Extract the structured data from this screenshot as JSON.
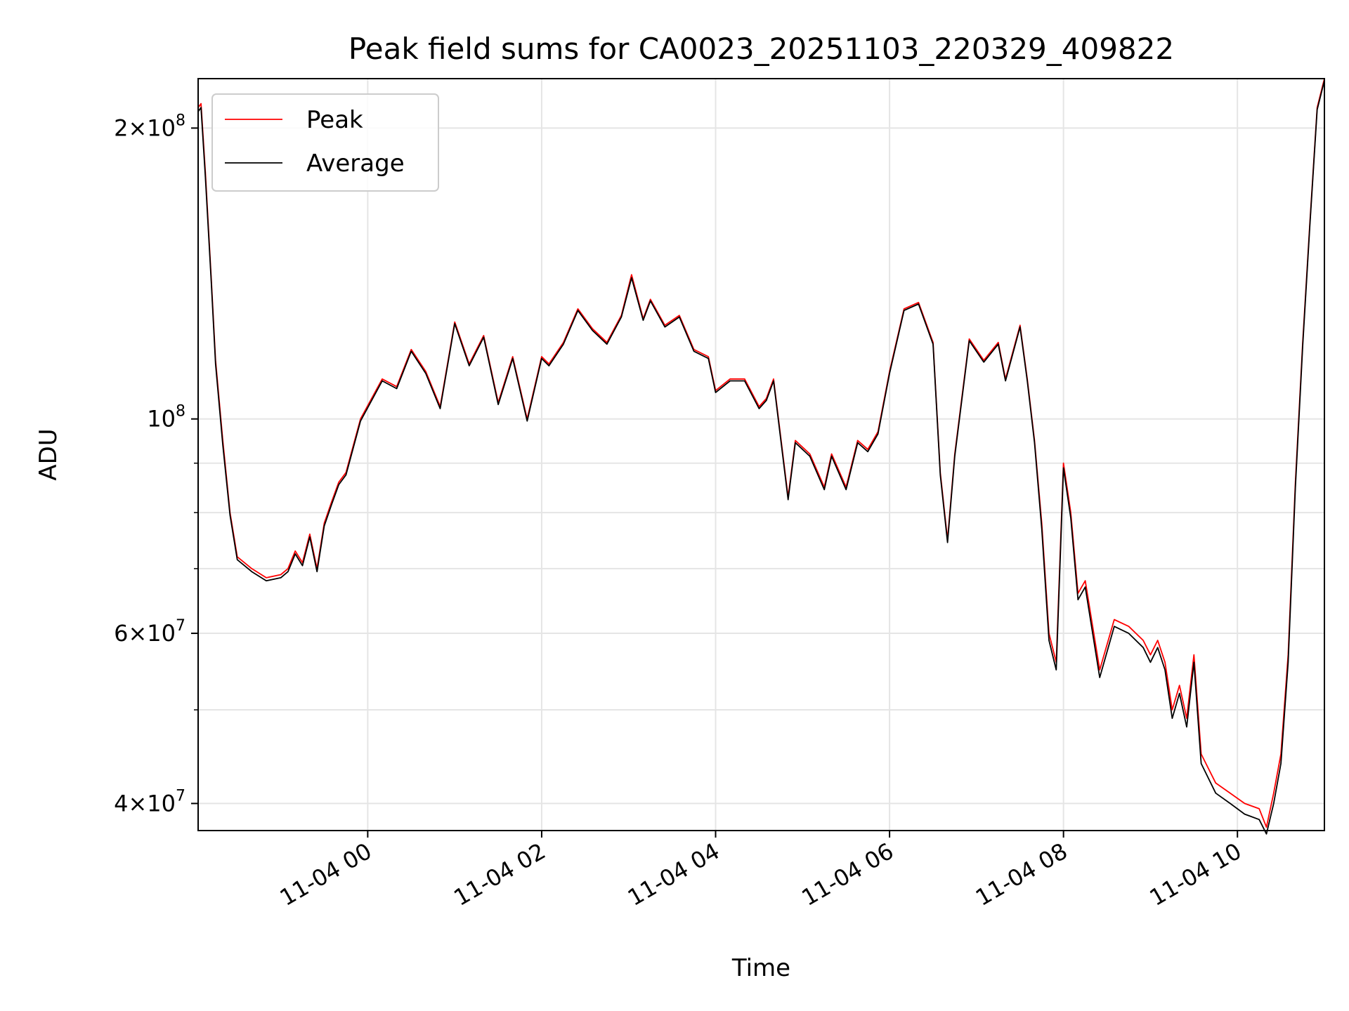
{
  "chart_data": {
    "type": "line",
    "title": "Peak field sums for CA0023_20251103_220329_409822",
    "xlabel": "Time",
    "ylabel": "ADU",
    "x_start": "2025-11-03T22:03",
    "x_end": "2025-11-04T11:00",
    "xlim": [
      "2025-11-03T22:03",
      "2025-11-04T11:00"
    ],
    "yscale": "log",
    "ylim": [
      37500000,
      225000000
    ],
    "grid": true,
    "legend_position": "top-left",
    "x_ticks": [
      {
        "value": "2025-11-04T00:00",
        "label": "11-04 00"
      },
      {
        "value": "2025-11-04T02:00",
        "label": "11-04 02"
      },
      {
        "value": "2025-11-04T04:00",
        "label": "11-04 04"
      },
      {
        "value": "2025-11-04T06:00",
        "label": "11-04 06"
      },
      {
        "value": "2025-11-04T08:00",
        "label": "11-04 08"
      },
      {
        "value": "2025-11-04T10:00",
        "label": "11-04 10"
      }
    ],
    "y_ticks": [
      {
        "value": 40000000,
        "mantissa": "4",
        "exponent": "7"
      },
      {
        "value": 60000000,
        "mantissa": "6",
        "exponent": "7"
      },
      {
        "value": 100000000,
        "mantissa": "",
        "exponent": "8"
      },
      {
        "value": 200000000,
        "mantissa": "2",
        "exponent": "8"
      }
    ],
    "y_minor_ticks": [
      50000000,
      70000000,
      80000000,
      90000000
    ],
    "series": [
      {
        "name": "Peak",
        "color": "#ff0000",
        "x": [
          "2025-11-03T22:03",
          "2025-11-03T22:05",
          "2025-11-03T22:08",
          "2025-11-03T22:12",
          "2025-11-03T22:15",
          "2025-11-03T22:20",
          "2025-11-03T22:25",
          "2025-11-03T22:30",
          "2025-11-03T22:40",
          "2025-11-03T22:50",
          "2025-11-03T23:00",
          "2025-11-03T23:05",
          "2025-11-03T23:10",
          "2025-11-03T23:15",
          "2025-11-03T23:20",
          "2025-11-03T23:25",
          "2025-11-03T23:30",
          "2025-11-03T23:35",
          "2025-11-03T23:40",
          "2025-11-03T23:45",
          "2025-11-03T23:55",
          "2025-11-04T00:10",
          "2025-11-04T00:20",
          "2025-11-04T00:30",
          "2025-11-04T00:40",
          "2025-11-04T00:50",
          "2025-11-04T01:00",
          "2025-11-04T01:10",
          "2025-11-04T01:20",
          "2025-11-04T01:30",
          "2025-11-04T01:40",
          "2025-11-04T01:50",
          "2025-11-04T02:00",
          "2025-11-04T02:05",
          "2025-11-04T02:15",
          "2025-11-04T02:25",
          "2025-11-04T02:35",
          "2025-11-04T02:45",
          "2025-11-04T02:55",
          "2025-11-04T03:02",
          "2025-11-04T03:10",
          "2025-11-04T03:15",
          "2025-11-04T03:25",
          "2025-11-04T03:35",
          "2025-11-04T03:45",
          "2025-11-04T03:55",
          "2025-11-04T04:00",
          "2025-11-04T04:10",
          "2025-11-04T04:20",
          "2025-11-04T04:30",
          "2025-11-04T04:35",
          "2025-11-04T04:40",
          "2025-11-04T04:50",
          "2025-11-04T04:55",
          "2025-11-04T05:05",
          "2025-11-04T05:15",
          "2025-11-04T05:20",
          "2025-11-04T05:30",
          "2025-11-04T05:38",
          "2025-11-04T05:45",
          "2025-11-04T05:52",
          "2025-11-04T06:00",
          "2025-11-04T06:10",
          "2025-11-04T06:20",
          "2025-11-04T06:30",
          "2025-11-04T06:35",
          "2025-11-04T06:40",
          "2025-11-04T06:45",
          "2025-11-04T06:55",
          "2025-11-04T07:05",
          "2025-11-04T07:15",
          "2025-11-04T07:20",
          "2025-11-04T07:30",
          "2025-11-04T07:35",
          "2025-11-04T07:40",
          "2025-11-04T07:45",
          "2025-11-04T07:50",
          "2025-11-04T07:55",
          "2025-11-04T08:00",
          "2025-11-04T08:05",
          "2025-11-04T08:10",
          "2025-11-04T08:15",
          "2025-11-04T08:25",
          "2025-11-04T08:35",
          "2025-11-04T08:45",
          "2025-11-04T08:55",
          "2025-11-04T09:00",
          "2025-11-04T09:05",
          "2025-11-04T09:10",
          "2025-11-04T09:15",
          "2025-11-04T09:20",
          "2025-11-04T09:25",
          "2025-11-04T09:30",
          "2025-11-04T09:35",
          "2025-11-04T09:45",
          "2025-11-04T09:55",
          "2025-11-04T10:05",
          "2025-11-04T10:15",
          "2025-11-04T10:20",
          "2025-11-04T10:25",
          "2025-11-04T10:30",
          "2025-11-04T10:35",
          "2025-11-04T10:40",
          "2025-11-04T10:45",
          "2025-11-04T10:50",
          "2025-11-04T10:55",
          "2025-11-04T11:00"
        ],
        "values": [
          210000000,
          212000000,
          180000000,
          140000000,
          115000000,
          95000000,
          80000000,
          72000000,
          70000000,
          68500000,
          69000000,
          70000000,
          73000000,
          71000000,
          76000000,
          70000000,
          78000000,
          82000000,
          86000000,
          88000000,
          100000000,
          110000000,
          108000000,
          118000000,
          112000000,
          103000000,
          126000000,
          114000000,
          122000000,
          104000000,
          116000000,
          100000000,
          116000000,
          114000000,
          120000000,
          130000000,
          124000000,
          120000000,
          128000000,
          141000000,
          127000000,
          133000000,
          125000000,
          128000000,
          118000000,
          116000000,
          107000000,
          110000000,
          110000000,
          103000000,
          105000000,
          110000000,
          83000000,
          95000000,
          92000000,
          85000000,
          92000000,
          85000000,
          95000000,
          93000000,
          97000000,
          112000000,
          130000000,
          132000000,
          120000000,
          88000000,
          75000000,
          92000000,
          121000000,
          115000000,
          120000000,
          110000000,
          125000000,
          110000000,
          95000000,
          78000000,
          60000000,
          56000000,
          90000000,
          80000000,
          66000000,
          68000000,
          55000000,
          62000000,
          61000000,
          59000000,
          57000000,
          59000000,
          56000000,
          50000000,
          53000000,
          49000000,
          57000000,
          45000000,
          42000000,
          41000000,
          40000000,
          39500000,
          37800000,
          41000000,
          45000000,
          57000000,
          86000000,
          120000000,
          160000000,
          210000000,
          225000000
        ]
      },
      {
        "name": "Average",
        "color": "#000000",
        "x": [
          "2025-11-03T22:03",
          "2025-11-03T22:05",
          "2025-11-03T22:08",
          "2025-11-03T22:12",
          "2025-11-03T22:15",
          "2025-11-03T22:20",
          "2025-11-03T22:25",
          "2025-11-03T22:30",
          "2025-11-03T22:40",
          "2025-11-03T22:50",
          "2025-11-03T23:00",
          "2025-11-03T23:05",
          "2025-11-03T23:10",
          "2025-11-03T23:15",
          "2025-11-03T23:20",
          "2025-11-03T23:25",
          "2025-11-03T23:30",
          "2025-11-03T23:35",
          "2025-11-03T23:40",
          "2025-11-03T23:45",
          "2025-11-03T23:55",
          "2025-11-04T00:10",
          "2025-11-04T00:20",
          "2025-11-04T00:30",
          "2025-11-04T00:40",
          "2025-11-04T00:50",
          "2025-11-04T01:00",
          "2025-11-04T01:10",
          "2025-11-04T01:20",
          "2025-11-04T01:30",
          "2025-11-04T01:40",
          "2025-11-04T01:50",
          "2025-11-04T02:00",
          "2025-11-04T02:05",
          "2025-11-04T02:15",
          "2025-11-04T02:25",
          "2025-11-04T02:35",
          "2025-11-04T02:45",
          "2025-11-04T02:55",
          "2025-11-04T03:02",
          "2025-11-04T03:10",
          "2025-11-04T03:15",
          "2025-11-04T03:25",
          "2025-11-04T03:35",
          "2025-11-04T03:45",
          "2025-11-04T03:55",
          "2025-11-04T04:00",
          "2025-11-04T04:10",
          "2025-11-04T04:20",
          "2025-11-04T04:30",
          "2025-11-04T04:35",
          "2025-11-04T04:40",
          "2025-11-04T04:50",
          "2025-11-04T04:55",
          "2025-11-04T05:05",
          "2025-11-04T05:15",
          "2025-11-04T05:20",
          "2025-11-04T05:30",
          "2025-11-04T05:38",
          "2025-11-04T05:45",
          "2025-11-04T05:52",
          "2025-11-04T06:00",
          "2025-11-04T06:10",
          "2025-11-04T06:20",
          "2025-11-04T06:30",
          "2025-11-04T06:35",
          "2025-11-04T06:40",
          "2025-11-04T06:45",
          "2025-11-04T06:55",
          "2025-11-04T07:05",
          "2025-11-04T07:15",
          "2025-11-04T07:20",
          "2025-11-04T07:30",
          "2025-11-04T07:35",
          "2025-11-04T07:40",
          "2025-11-04T07:45",
          "2025-11-04T07:50",
          "2025-11-04T07:55",
          "2025-11-04T08:00",
          "2025-11-04T08:05",
          "2025-11-04T08:10",
          "2025-11-04T08:15",
          "2025-11-04T08:25",
          "2025-11-04T08:35",
          "2025-11-04T08:45",
          "2025-11-04T08:55",
          "2025-11-04T09:00",
          "2025-11-04T09:05",
          "2025-11-04T09:10",
          "2025-11-04T09:15",
          "2025-11-04T09:20",
          "2025-11-04T09:25",
          "2025-11-04T09:30",
          "2025-11-04T09:35",
          "2025-11-04T09:45",
          "2025-11-04T09:55",
          "2025-11-04T10:05",
          "2025-11-04T10:15",
          "2025-11-04T10:20",
          "2025-11-04T10:25",
          "2025-11-04T10:30",
          "2025-11-04T10:35",
          "2025-11-04T10:40",
          "2025-11-04T10:45",
          "2025-11-04T10:50",
          "2025-11-04T10:55",
          "2025-11-04T11:00"
        ],
        "values": [
          208000000,
          210000000,
          178000000,
          139000000,
          114000000,
          94000000,
          79500000,
          71500000,
          69500000,
          68000000,
          68500000,
          69500000,
          72500000,
          70500000,
          75500000,
          69500000,
          77500000,
          81500000,
          85500000,
          87500000,
          99500000,
          109500000,
          107500000,
          117500000,
          111500000,
          102500000,
          125500000,
          113500000,
          121500000,
          103500000,
          115500000,
          99500000,
          115500000,
          113500000,
          119500000,
          129500000,
          123500000,
          119500000,
          127500000,
          140000000,
          126500000,
          132500000,
          124500000,
          127500000,
          117500000,
          115500000,
          106500000,
          109500000,
          109500000,
          102500000,
          104500000,
          109500000,
          82500000,
          94500000,
          91500000,
          84500000,
          91500000,
          84500000,
          94500000,
          92500000,
          96500000,
          111500000,
          129500000,
          131500000,
          119500000,
          87500000,
          74500000,
          91500000,
          120500000,
          114500000,
          119500000,
          109500000,
          124500000,
          109500000,
          94500000,
          77000000,
          59000000,
          55000000,
          89000000,
          79000000,
          65000000,
          67000000,
          54000000,
          61000000,
          60000000,
          58000000,
          56000000,
          58000000,
          55000000,
          49000000,
          52000000,
          48000000,
          56000000,
          44000000,
          41000000,
          40000000,
          39000000,
          38500000,
          37200000,
          40000000,
          44000000,
          56000000,
          85000000,
          119000000,
          159000000,
          209000000,
          224000000
        ]
      }
    ]
  }
}
